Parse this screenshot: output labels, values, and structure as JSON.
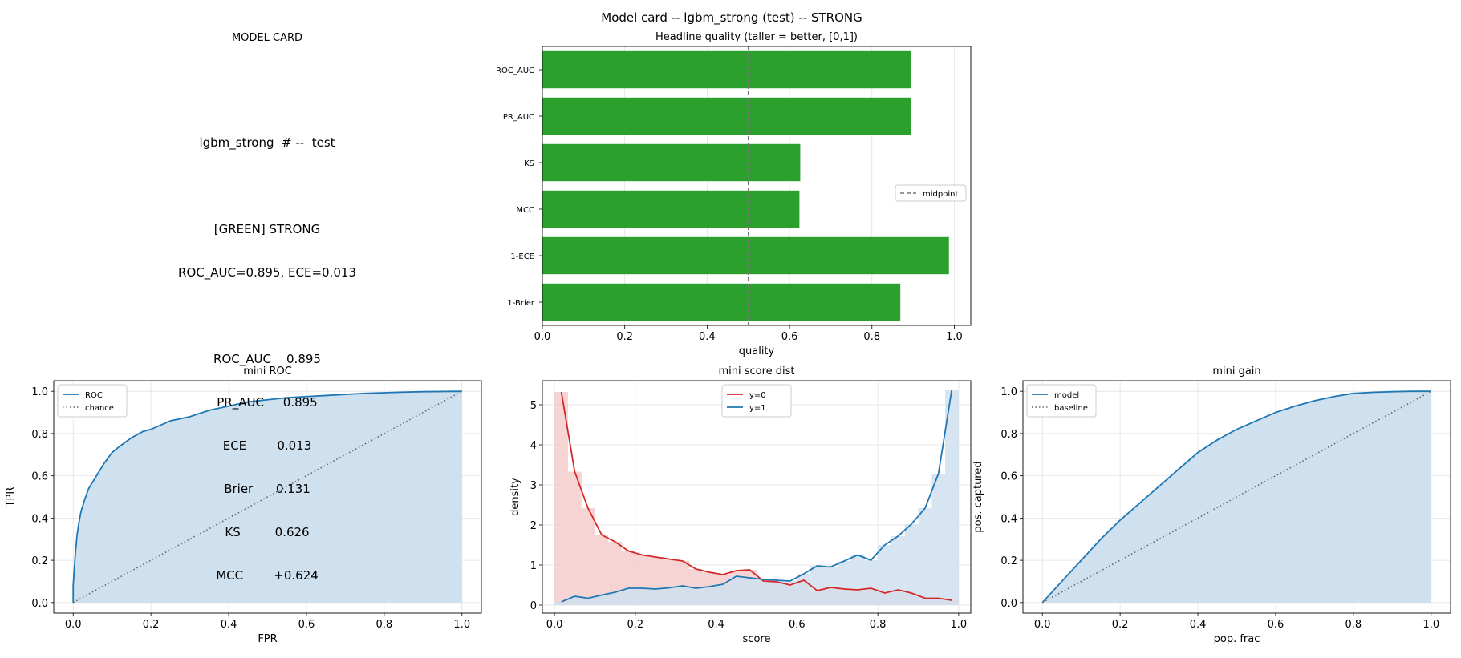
{
  "figure_title": "Model card -- lgbm_strong (test) -- STRONG",
  "model_card": {
    "title": "MODEL CARD",
    "header": "lgbm_strong  # --  test",
    "verdict": "[GREEN] STRONG",
    "summary": "ROC_AUC=0.895, ECE=0.013",
    "metrics": [
      {
        "name": "ROC_AUC",
        "value": "0.895"
      },
      {
        "name": "PR_AUC",
        "value": "0.895"
      },
      {
        "name": "ECE",
        "value": "0.013"
      },
      {
        "name": "Brier",
        "value": "0.131"
      },
      {
        "name": "KS",
        "value": "0.626"
      },
      {
        "name": "MCC",
        "value": "+0.624"
      }
    ]
  },
  "colors": {
    "bar_green": "#2ca02c",
    "blue": "#1f77b4",
    "red": "#d62728",
    "fill_blue": "#cfe0ee",
    "fill_red": "#f5cccc",
    "grid": "#e2e2e2",
    "baseline": "#666666"
  },
  "chart_data": [
    {
      "id": "quality",
      "type": "bar",
      "orientation": "horizontal",
      "title": "Headline quality (taller = better, [0,1])",
      "xlabel": "quality",
      "ylabel": "",
      "xlim": [
        0,
        1.04
      ],
      "xticks": [
        0,
        0.2,
        0.4,
        0.6,
        0.8,
        1.0
      ],
      "xtick_labels": [
        "0.0",
        "0.2",
        "0.4",
        "0.6",
        "0.8",
        "1.0"
      ],
      "categories": [
        "ROC_AUC",
        "PR_AUC",
        "KS",
        "MCC",
        "1-ECE",
        "1-Brier"
      ],
      "values": [
        0.895,
        0.895,
        0.626,
        0.624,
        0.987,
        0.869
      ],
      "reference_line": {
        "x": 0.5,
        "label": "midpoint"
      },
      "grid": true,
      "legend": "center-right"
    },
    {
      "id": "roc",
      "type": "line",
      "title": "mini ROC",
      "xlabel": "FPR",
      "ylabel": "TPR",
      "xlim": [
        -0.05,
        1.05
      ],
      "ylim": [
        -0.05,
        1.05
      ],
      "xticks": [
        0,
        0.2,
        0.4,
        0.6,
        0.8,
        1.0
      ],
      "xtick_labels": [
        "0.0",
        "0.2",
        "0.4",
        "0.6",
        "0.8",
        "1.0"
      ],
      "yticks": [
        0,
        0.2,
        0.4,
        0.6,
        0.8,
        1.0
      ],
      "ytick_labels": [
        "0.0",
        "0.2",
        "0.4",
        "0.6",
        "0.8",
        "1.0"
      ],
      "grid": true,
      "legend": "top-left",
      "series": [
        {
          "name": "ROC",
          "style": "solid",
          "fill": true,
          "x": [
            0,
            0,
            0.005,
            0.01,
            0.015,
            0.02,
            0.03,
            0.04,
            0.05,
            0.06,
            0.08,
            0.1,
            0.12,
            0.15,
            0.18,
            0.2,
            0.25,
            0.3,
            0.35,
            0.4,
            0.45,
            0.5,
            0.55,
            0.6,
            0.65,
            0.7,
            0.75,
            0.8,
            0.85,
            0.9,
            0.95,
            1.0
          ],
          "y": [
            0,
            0.08,
            0.22,
            0.32,
            0.38,
            0.43,
            0.49,
            0.54,
            0.57,
            0.6,
            0.66,
            0.71,
            0.74,
            0.78,
            0.81,
            0.82,
            0.86,
            0.88,
            0.91,
            0.93,
            0.95,
            0.96,
            0.97,
            0.975,
            0.98,
            0.985,
            0.99,
            0.993,
            0.996,
            0.998,
            0.999,
            1.0
          ]
        },
        {
          "name": "chance",
          "style": "dotted",
          "fill": false,
          "x": [
            0,
            1
          ],
          "y": [
            0,
            1
          ]
        }
      ]
    },
    {
      "id": "score_dist",
      "type": "line",
      "title": "mini score dist",
      "xlabel": "score",
      "ylabel": "density",
      "xlim": [
        -0.03,
        1.03
      ],
      "ylim": [
        -0.2,
        5.6
      ],
      "xticks": [
        0,
        0.2,
        0.4,
        0.6,
        0.8,
        1.0
      ],
      "xtick_labels": [
        "0.0",
        "0.2",
        "0.4",
        "0.6",
        "0.8",
        "1.0"
      ],
      "yticks": [
        0,
        1,
        2,
        3,
        4,
        5
      ],
      "ytick_labels": [
        "0",
        "1",
        "2",
        "3",
        "4",
        "5"
      ],
      "grid": true,
      "legend": "top-center",
      "bin_edges": [
        0,
        0.0333,
        0.0667,
        0.1,
        0.1333,
        0.1667,
        0.2,
        0.2333,
        0.2667,
        0.3,
        0.3333,
        0.3667,
        0.4,
        0.4333,
        0.4667,
        0.5,
        0.5333,
        0.5667,
        0.6,
        0.6333,
        0.6667,
        0.7,
        0.7333,
        0.7667,
        0.8,
        0.8333,
        0.8667,
        0.9,
        0.9333,
        0.9667,
        1.0
      ],
      "series": [
        {
          "name": "y=0",
          "x": [
            0.017,
            0.05,
            0.083,
            0.117,
            0.15,
            0.183,
            0.217,
            0.25,
            0.283,
            0.317,
            0.35,
            0.383,
            0.417,
            0.45,
            0.483,
            0.517,
            0.55,
            0.583,
            0.617,
            0.65,
            0.683,
            0.717,
            0.75,
            0.783,
            0.817,
            0.85,
            0.883,
            0.917,
            0.95,
            0.983
          ],
          "y": [
            5.32,
            3.33,
            2.42,
            1.75,
            1.58,
            1.35,
            1.25,
            1.2,
            1.15,
            1.1,
            0.9,
            0.82,
            0.76,
            0.86,
            0.88,
            0.6,
            0.58,
            0.5,
            0.62,
            0.36,
            0.44,
            0.4,
            0.38,
            0.42,
            0.3,
            0.38,
            0.3,
            0.17,
            0.17,
            0.12
          ]
        },
        {
          "name": "y=1",
          "x": [
            0.017,
            0.05,
            0.083,
            0.117,
            0.15,
            0.183,
            0.217,
            0.25,
            0.283,
            0.317,
            0.35,
            0.383,
            0.417,
            0.45,
            0.483,
            0.517,
            0.55,
            0.583,
            0.617,
            0.65,
            0.683,
            0.717,
            0.75,
            0.783,
            0.817,
            0.85,
            0.883,
            0.917,
            0.95,
            0.983
          ],
          "y": [
            0.08,
            0.22,
            0.17,
            0.25,
            0.32,
            0.42,
            0.42,
            0.4,
            0.43,
            0.48,
            0.42,
            0.46,
            0.52,
            0.72,
            0.68,
            0.64,
            0.62,
            0.6,
            0.78,
            0.98,
            0.95,
            1.1,
            1.25,
            1.12,
            1.5,
            1.72,
            2.02,
            2.42,
            3.28,
            5.38
          ]
        }
      ]
    },
    {
      "id": "gain",
      "type": "line",
      "title": "mini gain",
      "xlabel": "pop. frac",
      "ylabel": "pos. captured",
      "xlim": [
        -0.05,
        1.05
      ],
      "ylim": [
        -0.05,
        1.05
      ],
      "xticks": [
        0,
        0.2,
        0.4,
        0.6,
        0.8,
        1.0
      ],
      "xtick_labels": [
        "0.0",
        "0.2",
        "0.4",
        "0.6",
        "0.8",
        "1.0"
      ],
      "yticks": [
        0,
        0.2,
        0.4,
        0.6,
        0.8,
        1.0
      ],
      "ytick_labels": [
        "0.0",
        "0.2",
        "0.4",
        "0.6",
        "0.8",
        "1.0"
      ],
      "grid": true,
      "legend": "top-left",
      "series": [
        {
          "name": "model",
          "style": "solid",
          "fill": true,
          "x": [
            0,
            0.05,
            0.1,
            0.15,
            0.2,
            0.25,
            0.3,
            0.35,
            0.4,
            0.45,
            0.5,
            0.55,
            0.6,
            0.65,
            0.7,
            0.75,
            0.8,
            0.85,
            0.9,
            0.95,
            1.0
          ],
          "y": [
            0,
            0.1,
            0.2,
            0.3,
            0.39,
            0.47,
            0.55,
            0.63,
            0.71,
            0.77,
            0.82,
            0.86,
            0.9,
            0.93,
            0.955,
            0.975,
            0.99,
            0.995,
            0.998,
            1.0,
            1.0
          ]
        },
        {
          "name": "baseline",
          "style": "dotted",
          "fill": false,
          "x": [
            0,
            1
          ],
          "y": [
            0,
            1
          ]
        }
      ]
    }
  ]
}
